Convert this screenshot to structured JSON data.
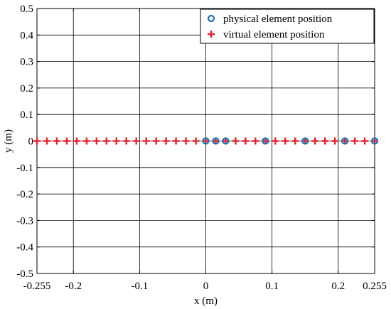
{
  "chart_data": {
    "type": "scatter",
    "xlabel": "x (m)",
    "ylabel": "y (m)",
    "xlim": [
      -0.255,
      0.255
    ],
    "ylim": [
      -0.5,
      0.5
    ],
    "grid": true,
    "x_ticks": [
      -0.255,
      -0.2,
      -0.1,
      0,
      0.1,
      0.2,
      0.255
    ],
    "x_tick_labels": [
      "-0.255",
      "-0.2",
      "-0.1",
      "0",
      "0.1",
      "0.2",
      "0.255"
    ],
    "y_ticks": [
      0.5,
      0.4,
      0.3,
      0.2,
      0.1,
      0,
      -0.1,
      -0.2,
      -0.3,
      -0.4,
      -0.5
    ],
    "y_tick_labels": [
      "0.5",
      "0.4",
      "0.3",
      "0.2",
      "0.1",
      "0",
      "-0.1",
      "-0.2",
      "-0.3",
      "-0.4",
      "-0.5"
    ],
    "legend_position": "top-right",
    "series": [
      {
        "name": "physical element position",
        "marker": "circle",
        "color": "#1f6fb5",
        "x": [
          0,
          0.015,
          0.03,
          0.09,
          0.15,
          0.21,
          0.255
        ],
        "y": [
          0,
          0,
          0,
          0,
          0,
          0,
          0
        ]
      },
      {
        "name": "virtual element position",
        "marker": "plus",
        "color": "#e8202a",
        "x": [
          -0.255,
          -0.24,
          -0.225,
          -0.21,
          -0.195,
          -0.18,
          -0.165,
          -0.15,
          -0.135,
          -0.12,
          -0.105,
          -0.09,
          -0.075,
          -0.06,
          -0.045,
          -0.03,
          -0.015,
          0,
          0.015,
          0.03,
          0.045,
          0.06,
          0.075,
          0.09,
          0.105,
          0.12,
          0.135,
          0.15,
          0.165,
          0.18,
          0.195,
          0.21,
          0.225,
          0.24,
          0.255
        ],
        "y": [
          0,
          0,
          0,
          0,
          0,
          0,
          0,
          0,
          0,
          0,
          0,
          0,
          0,
          0,
          0,
          0,
          0,
          0,
          0,
          0,
          0,
          0,
          0,
          0,
          0,
          0,
          0,
          0,
          0,
          0,
          0,
          0,
          0,
          0,
          0
        ]
      }
    ]
  }
}
